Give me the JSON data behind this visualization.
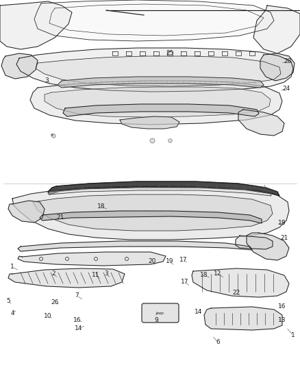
{
  "background_color": "#ffffff",
  "line_color": "#1a1a1a",
  "fig_width": 4.38,
  "fig_height": 5.33,
  "dpi": 100,
  "upper_labels": [
    [
      "1",
      428,
      490
    ],
    [
      "4",
      18,
      458
    ],
    [
      "5",
      12,
      440
    ],
    [
      "6",
      318,
      500
    ],
    [
      "7",
      112,
      432
    ],
    [
      "9",
      228,
      468
    ],
    [
      "10",
      70,
      462
    ],
    [
      "11",
      140,
      402
    ],
    [
      "12",
      318,
      400
    ],
    [
      "13",
      412,
      468
    ],
    [
      "14",
      290,
      455
    ],
    [
      "16",
      412,
      448
    ],
    [
      "17",
      270,
      412
    ],
    [
      "18",
      298,
      402
    ],
    [
      "19",
      248,
      382
    ],
    [
      "20",
      222,
      382
    ],
    [
      "22",
      345,
      428
    ],
    [
      "26",
      80,
      442
    ],
    [
      "2",
      78,
      400
    ],
    [
      "3",
      155,
      400
    ]
  ],
  "lower_labels": [
    [
      "1",
      18,
      390
    ],
    [
      "3",
      68,
      118
    ],
    [
      "14",
      115,
      480
    ],
    [
      "16",
      113,
      468
    ],
    [
      "17",
      268,
      380
    ],
    [
      "18",
      412,
      325
    ],
    [
      "18",
      148,
      302
    ],
    [
      "21",
      415,
      348
    ],
    [
      "21",
      88,
      318
    ],
    [
      "24",
      418,
      130
    ],
    [
      "25",
      248,
      78
    ],
    [
      "28",
      420,
      90
    ]
  ]
}
